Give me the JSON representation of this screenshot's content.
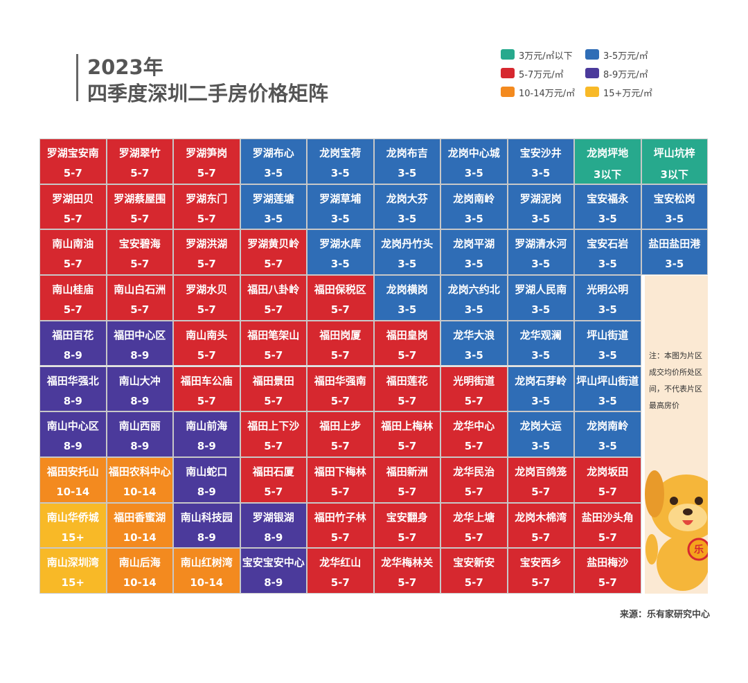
{
  "header": {
    "title_line1": "2023年",
    "title_line2": "四季度深圳二手房价格矩阵"
  },
  "legend": [
    {
      "label": "3万元/㎡以下",
      "color": "#27a98d"
    },
    {
      "label": "3-5万元/㎡",
      "color": "#2f6db6"
    },
    {
      "label": "5-7万元/㎡",
      "color": "#d6282f"
    },
    {
      "label": "8-9万元/㎡",
      "color": "#4b3a9b"
    },
    {
      "label": "10-14万元/㎡",
      "color": "#f38a1f"
    },
    {
      "label": "15+万元/㎡",
      "color": "#f8b927"
    }
  ],
  "range_colors": {
    "3以下": "#27a98d",
    "3-5": "#2f6db6",
    "5-7": "#d6282f",
    "8-9": "#4b3a9b",
    "10-14": "#f38a1f",
    "15+": "#f8b927"
  },
  "grid": [
    [
      {
        "name": "罗湖宝安南",
        "range": "5-7"
      },
      {
        "name": "罗湖翠竹",
        "range": "5-7"
      },
      {
        "name": "罗湖笋岗",
        "range": "5-7"
      },
      {
        "name": "罗湖布心",
        "range": "3-5"
      },
      {
        "name": "龙岗宝荷",
        "range": "3-5"
      },
      {
        "name": "龙岗布吉",
        "range": "3-5"
      },
      {
        "name": "龙岗中心城",
        "range": "3-5"
      },
      {
        "name": "宝安沙井",
        "range": "3-5"
      },
      {
        "name": "龙岗坪地",
        "range": "3以下"
      },
      {
        "name": "坪山坑梓",
        "range": "3以下"
      }
    ],
    [
      {
        "name": "罗湖田贝",
        "range": "5-7"
      },
      {
        "name": "罗湖蔡屋围",
        "range": "5-7"
      },
      {
        "name": "罗湖东门",
        "range": "5-7"
      },
      {
        "name": "罗湖莲塘",
        "range": "3-5"
      },
      {
        "name": "罗湖草埔",
        "range": "3-5"
      },
      {
        "name": "龙岗大芬",
        "range": "3-5"
      },
      {
        "name": "龙岗南岭",
        "range": "3-5"
      },
      {
        "name": "罗湖泥岗",
        "range": "3-5"
      },
      {
        "name": "宝安福永",
        "range": "3-5"
      },
      {
        "name": "宝安松岗",
        "range": "3-5"
      }
    ],
    [
      {
        "name": "南山南油",
        "range": "5-7"
      },
      {
        "name": "宝安碧海",
        "range": "5-7"
      },
      {
        "name": "罗湖洪湖",
        "range": "5-7"
      },
      {
        "name": "罗湖黄贝岭",
        "range": "5-7"
      },
      {
        "name": "罗湖水库",
        "range": "3-5"
      },
      {
        "name": "龙岗丹竹头",
        "range": "3-5"
      },
      {
        "name": "龙岗平湖",
        "range": "3-5"
      },
      {
        "name": "罗湖清水河",
        "range": "3-5"
      },
      {
        "name": "宝安石岩",
        "range": "3-5"
      },
      {
        "name": "盐田盐田港",
        "range": "3-5"
      }
    ],
    [
      {
        "name": "南山桂庙",
        "range": "5-7"
      },
      {
        "name": "南山白石洲",
        "range": "5-7"
      },
      {
        "name": "罗湖水贝",
        "range": "5-7"
      },
      {
        "name": "福田八卦岭",
        "range": "5-7"
      },
      {
        "name": "福田保税区",
        "range": "5-7"
      },
      {
        "name": "龙岗横岗",
        "range": "3-5"
      },
      {
        "name": "龙岗六约北",
        "range": "3-5"
      },
      {
        "name": "罗湖人民南",
        "range": "3-5"
      },
      {
        "name": "光明公明",
        "range": "3-5"
      }
    ],
    [
      {
        "name": "福田百花",
        "range": "8-9"
      },
      {
        "name": "福田中心区",
        "range": "8-9"
      },
      {
        "name": "南山南头",
        "range": "5-7"
      },
      {
        "name": "福田笔架山",
        "range": "5-7"
      },
      {
        "name": "福田岗厦",
        "range": "5-7"
      },
      {
        "name": "福田皇岗",
        "range": "5-7"
      },
      {
        "name": "龙华大浪",
        "range": "3-5"
      },
      {
        "name": "龙华观澜",
        "range": "3-5"
      },
      {
        "name": "坪山街道",
        "range": "3-5"
      }
    ],
    [
      {
        "name": "福田华强北",
        "range": "8-9"
      },
      {
        "name": "南山大冲",
        "range": "8-9"
      },
      {
        "name": "福田车公庙",
        "range": "5-7"
      },
      {
        "name": "福田景田",
        "range": "5-7"
      },
      {
        "name": "福田华强南",
        "range": "5-7"
      },
      {
        "name": "福田莲花",
        "range": "5-7"
      },
      {
        "name": "光明街道",
        "range": "5-7"
      },
      {
        "name": "龙岗石芽岭",
        "range": "3-5"
      },
      {
        "name": "坪山坪山街道",
        "range": "3-5"
      }
    ],
    [
      {
        "name": "南山中心区",
        "range": "8-9"
      },
      {
        "name": "南山西丽",
        "range": "8-9"
      },
      {
        "name": "南山前海",
        "range": "8-9"
      },
      {
        "name": "福田上下沙",
        "range": "5-7"
      },
      {
        "name": "福田上步",
        "range": "5-7"
      },
      {
        "name": "福田上梅林",
        "range": "5-7"
      },
      {
        "name": "龙华中心",
        "range": "5-7"
      },
      {
        "name": "龙岗大运",
        "range": "3-5"
      },
      {
        "name": "龙岗南岭",
        "range": "3-5"
      }
    ],
    [
      {
        "name": "福田安托山",
        "range": "10-14"
      },
      {
        "name": "福田农科中心",
        "range": "10-14"
      },
      {
        "name": "南山蛇口",
        "range": "8-9"
      },
      {
        "name": "福田石厦",
        "range": "5-7"
      },
      {
        "name": "福田下梅林",
        "range": "5-7"
      },
      {
        "name": "福田新洲",
        "range": "5-7"
      },
      {
        "name": "龙华民治",
        "range": "5-7"
      },
      {
        "name": "龙岗百鸽笼",
        "range": "5-7"
      },
      {
        "name": "龙岗坂田",
        "range": "5-7"
      }
    ],
    [
      {
        "name": "南山华侨城",
        "range": "15+"
      },
      {
        "name": "福田香蜜湖",
        "range": "10-14"
      },
      {
        "name": "南山科技园",
        "range": "8-9"
      },
      {
        "name": "罗湖银湖",
        "range": "8-9"
      },
      {
        "name": "福田竹子林",
        "range": "5-7"
      },
      {
        "name": "宝安翻身",
        "range": "5-7"
      },
      {
        "name": "龙华上塘",
        "range": "5-7"
      },
      {
        "name": "龙岗木棉湾",
        "range": "5-7"
      },
      {
        "name": "盐田沙头角",
        "range": "5-7"
      }
    ],
    [
      {
        "name": "南山深圳湾",
        "range": "15+"
      },
      {
        "name": "南山后海",
        "range": "10-14"
      },
      {
        "name": "南山红树湾",
        "range": "10-14"
      },
      {
        "name": "宝安宝安中心",
        "range": "8-9"
      },
      {
        "name": "龙华红山",
        "range": "5-7"
      },
      {
        "name": "龙华梅林关",
        "range": "5-7"
      },
      {
        "name": "宝安新安",
        "range": "5-7"
      },
      {
        "name": "宝安西乡",
        "range": "5-7"
      },
      {
        "name": "盐田梅沙",
        "range": "5-7"
      }
    ]
  ],
  "note": "注：本图为片区成交均价所处区间，不代表片区最高房价",
  "source": "来源：乐有家研究中心"
}
